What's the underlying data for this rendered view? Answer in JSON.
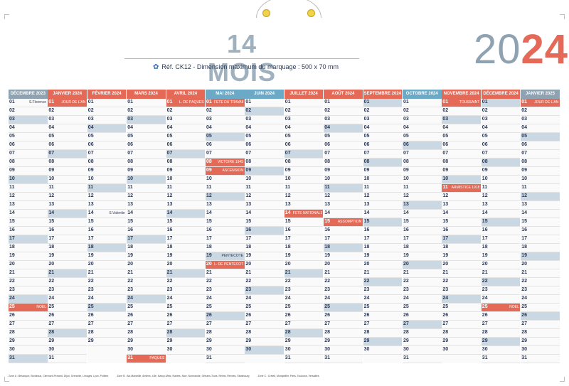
{
  "header": {
    "title": "14 MOIS",
    "reference": "Réf. CK12 - Dimension maximum du marquage : 500 x 70 mm",
    "year_prefix": "20",
    "year_suffix": "24"
  },
  "colors": {
    "accent_red": "#e46a57",
    "accent_blue_grey": "#8ea2b1",
    "blue": "#6ca9c7"
  },
  "months": [
    {
      "name": "DÉCEMBRE 2023",
      "color": "#8ea2b1",
      "sundays": [
        3,
        10,
        17,
        24,
        31
      ],
      "holidays": [
        25
      ],
      "blue": [],
      "saints": {
        "1": "S.Florence",
        "25": "NOËL"
      }
    },
    {
      "name": "JANVIER 2024",
      "color": "#e46a57",
      "sundays": [
        7,
        14,
        21,
        28
      ],
      "holidays": [
        1
      ],
      "blue": [],
      "saints": {
        "1": "JOUR DE L'AN"
      }
    },
    {
      "name": "FÉVRIER 2024",
      "color": "#e46a57",
      "sundays": [
        4,
        11,
        18,
        25
      ],
      "holidays": [],
      "blue": [],
      "saints": {
        "14": "S.Valentin"
      }
    },
    {
      "name": "MARS 2024",
      "color": "#e46a57",
      "sundays": [
        3,
        10,
        17,
        24,
        31
      ],
      "holidays": [
        31
      ],
      "blue": [],
      "saints": {
        "31": "PÂQUES"
      }
    },
    {
      "name": "AVRIL 2024",
      "color": "#e46a57",
      "sundays": [
        7,
        14,
        21,
        28
      ],
      "holidays": [
        1
      ],
      "blue": [],
      "saints": {
        "1": "L. DE PÂQUES"
      }
    },
    {
      "name": "MAI 2024",
      "color": "#6ca9c7",
      "sundays": [
        5,
        12,
        19,
        26
      ],
      "holidays": [
        1,
        8,
        9,
        20
      ],
      "blue": [],
      "saints": {
        "1": "FÊTE DU TRAVAIL",
        "8": "VICTOIRE 1945",
        "9": "ASCENSION",
        "19": "PENTECÔTE",
        "20": "L. DE PENTECÔTE"
      }
    },
    {
      "name": "JUIN 2024",
      "color": "#6ca9c7",
      "sundays": [
        2,
        9,
        16,
        23,
        30
      ],
      "holidays": [],
      "blue": [],
      "saints": {}
    },
    {
      "name": "JUILLET 2024",
      "color": "#e46a57",
      "sundays": [
        7,
        14,
        21,
        28
      ],
      "holidays": [
        14
      ],
      "blue": [],
      "saints": {
        "14": "FÊTE NATIONALE"
      }
    },
    {
      "name": "AOÛT 2024",
      "color": "#e46a57",
      "sundays": [
        4,
        11,
        18,
        25
      ],
      "holidays": [
        15
      ],
      "blue": [],
      "saints": {
        "15": "ASSOMPTION"
      }
    },
    {
      "name": "SEPTEMBRE 2024",
      "color": "#e46a57",
      "sundays": [
        1,
        8,
        15,
        22,
        29
      ],
      "holidays": [],
      "blue": [],
      "saints": {}
    },
    {
      "name": "OCTOBRE 2024",
      "color": "#6ca9c7",
      "sundays": [
        6,
        13,
        20,
        27
      ],
      "holidays": [],
      "blue": [],
      "saints": {}
    },
    {
      "name": "NOVEMBRE 2024",
      "color": "#e46a57",
      "sundays": [
        3,
        10,
        17,
        24
      ],
      "holidays": [
        1,
        11
      ],
      "blue": [],
      "saints": {
        "1": "TOUSSAINT",
        "11": "ARMISTICE 1918"
      }
    },
    {
      "name": "DÉCEMBRE 2024",
      "color": "#e46a57",
      "sundays": [
        1,
        8,
        15,
        22,
        29
      ],
      "holidays": [
        25
      ],
      "blue": [],
      "saints": {
        "25": "NOËL"
      }
    },
    {
      "name": "JANVIER 2025",
      "color": "#8ea2b1",
      "sundays": [
        5,
        12,
        19,
        26
      ],
      "holidays": [
        1
      ],
      "blue": [],
      "saints": {
        "1": "JOUR DE L'AN"
      }
    }
  ],
  "footer": {
    "left": "Zone A : Besançon, Bordeaux, Clermont-Ferrand, Dijon, Grenoble, Limoges, Lyon, Poitiers",
    "middle": "Zone B : Aix-Marseille, Amiens, Lille, Nancy-Metz, Nantes, Nice, Normandie, Orléans-Tours, Reims, Rennes, Strasbourg",
    "right": "Zone C : Créteil, Montpellier, Paris, Toulouse, Versailles"
  }
}
